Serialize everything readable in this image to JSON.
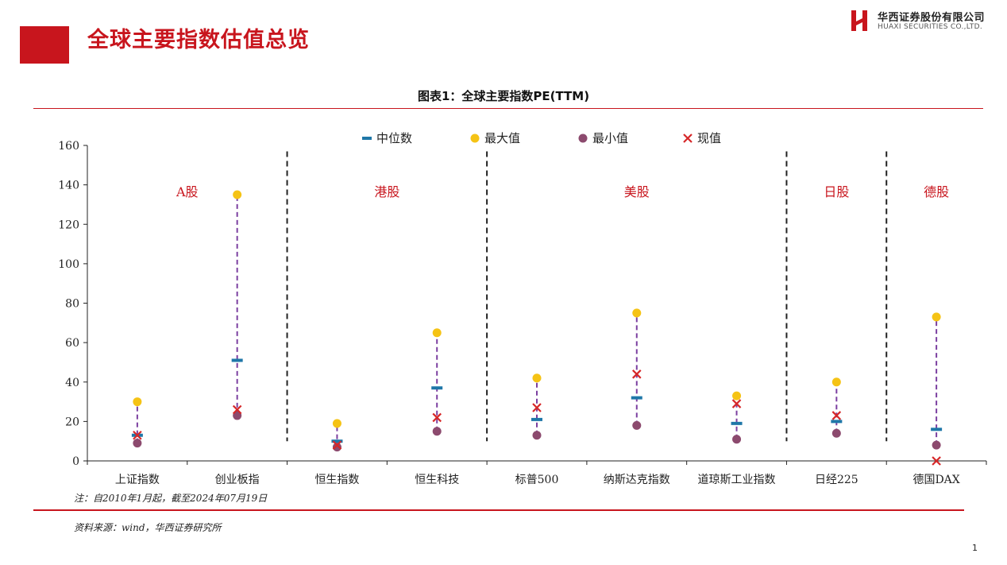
{
  "header": {
    "title": "全球主要指数估值总览",
    "logo_cn": "华西证券股份有限公司",
    "logo_en": "HUAXI SECURITIES CO.,LTD."
  },
  "page_number": "1",
  "colors": {
    "brand_red": "#c8151d",
    "median": "#1f77a8",
    "max": "#f5c315",
    "min": "#8c4a6e",
    "current": "#d62728",
    "range_line": "#7b3fa0"
  },
  "chart_data": {
    "type": "scatter",
    "title": "图表1：全球主要指数PE(TTM)",
    "xlabel": "",
    "ylabel": "",
    "ylim": [
      0,
      160
    ],
    "yticks": [
      0,
      20,
      40,
      60,
      80,
      100,
      120,
      140,
      160
    ],
    "categories": [
      "上证指数",
      "创业板指",
      "恒生指数",
      "恒生科技",
      "标普500",
      "纳斯达克指数",
      "道琼斯工业指数",
      "日经225",
      "德国DAX"
    ],
    "legend": {
      "position": "top",
      "items": [
        {
          "label": "中位数",
          "marker": "dash"
        },
        {
          "label": "最大值",
          "marker": "dot"
        },
        {
          "label": "最小值",
          "marker": "dot"
        },
        {
          "label": "现值",
          "marker": "x"
        }
      ]
    },
    "series": [
      {
        "name": "中位数",
        "values": [
          13,
          51,
          10,
          37,
          21,
          32,
          19,
          20,
          16
        ]
      },
      {
        "name": "最大值",
        "values": [
          30,
          135,
          19,
          65,
          42,
          75,
          33,
          40,
          73
        ]
      },
      {
        "name": "最小值",
        "values": [
          9,
          23,
          7,
          15,
          13,
          18,
          11,
          14,
          8
        ]
      },
      {
        "name": "现值",
        "values": [
          13,
          26,
          8,
          22,
          27,
          44,
          29,
          23,
          0
        ]
      }
    ],
    "groups": [
      {
        "label": "A股",
        "start": 0,
        "end": 1
      },
      {
        "label": "港股",
        "start": 2,
        "end": 3
      },
      {
        "label": "美股",
        "start": 4,
        "end": 6
      },
      {
        "label": "日股",
        "start": 7,
        "end": 7
      },
      {
        "label": "德股",
        "start": 8,
        "end": 8
      }
    ],
    "grid": false
  },
  "footer": {
    "note": "注：自2010年1月起，截至2024年07月19日",
    "source": "资料来源：wind，华西证券研究所"
  }
}
